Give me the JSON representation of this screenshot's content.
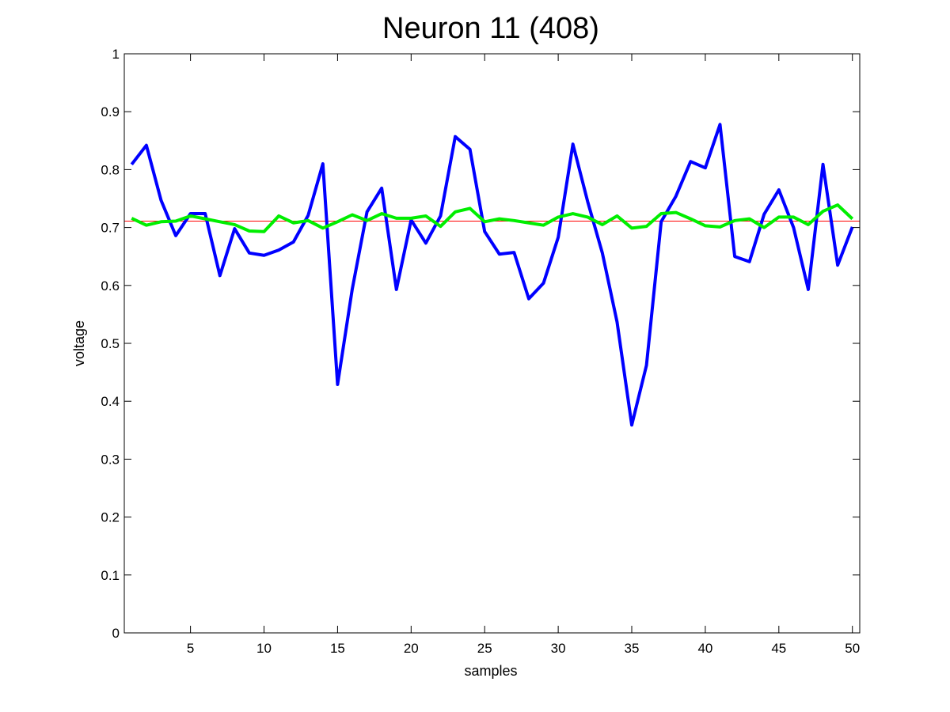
{
  "chart_data": {
    "type": "line",
    "title": "Neuron 11 (408)",
    "x_label": "samples",
    "y_label": "voltage",
    "x": [
      1,
      2,
      3,
      4,
      5,
      6,
      7,
      8,
      9,
      10,
      11,
      12,
      13,
      14,
      15,
      16,
      17,
      18,
      19,
      20,
      21,
      22,
      23,
      24,
      25,
      26,
      27,
      28,
      29,
      30,
      31,
      32,
      33,
      34,
      35,
      36,
      37,
      38,
      39,
      40,
      41,
      42,
      43,
      44,
      45,
      46,
      47,
      48,
      49,
      50
    ],
    "series": [
      {
        "color": "#0000ff",
        "width": 4,
        "values": [
          0.809,
          0.842,
          0.747,
          0.686,
          0.724,
          0.724,
          0.617,
          0.698,
          0.656,
          0.652,
          0.661,
          0.675,
          0.721,
          0.81,
          0.429,
          0.594,
          0.727,
          0.768,
          0.593,
          0.713,
          0.673,
          0.72,
          0.857,
          0.835,
          0.693,
          0.654,
          0.657,
          0.577,
          0.604,
          0.683,
          0.844,
          0.745,
          0.656,
          0.537,
          0.359,
          0.462,
          0.71,
          0.754,
          0.814,
          0.803,
          0.878,
          0.65,
          0.641,
          0.723,
          0.765,
          0.7,
          0.593,
          0.809,
          0.635,
          0.701
        ]
      },
      {
        "color": "#00ee00",
        "width": 4,
        "values": [
          0.716,
          0.704,
          0.71,
          0.711,
          0.72,
          0.715,
          0.71,
          0.705,
          0.694,
          0.693,
          0.72,
          0.708,
          0.712,
          0.699,
          0.71,
          0.722,
          0.712,
          0.724,
          0.716,
          0.716,
          0.72,
          0.702,
          0.727,
          0.733,
          0.71,
          0.715,
          0.712,
          0.708,
          0.704,
          0.718,
          0.724,
          0.718,
          0.705,
          0.72,
          0.699,
          0.702,
          0.724,
          0.726,
          0.715,
          0.703,
          0.701,
          0.712,
          0.715,
          0.7,
          0.718,
          0.718,
          0.705,
          0.728,
          0.739,
          0.715
        ]
      }
    ],
    "reference_line": {
      "value": 0.711,
      "color": "#ff0000"
    },
    "xlim": [
      0.5,
      50.5
    ],
    "xticks": [
      5,
      10,
      15,
      20,
      25,
      30,
      35,
      40,
      45,
      50
    ],
    "ylim": [
      0,
      1
    ],
    "yticks": [
      0,
      0.1,
      0.2,
      0.3,
      0.4,
      0.5,
      0.6,
      0.7,
      0.8,
      0.9,
      1
    ],
    "grid": false
  }
}
